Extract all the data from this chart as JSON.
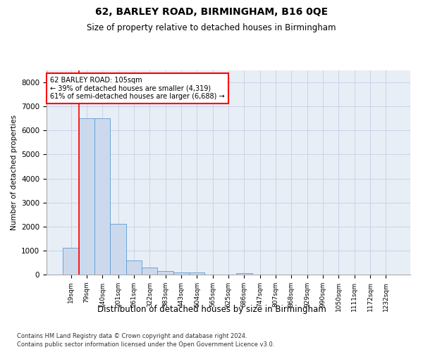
{
  "title1": "62, BARLEY ROAD, BIRMINGHAM, B16 0QE",
  "title2": "Size of property relative to detached houses in Birmingham",
  "xlabel": "Distribution of detached houses by size in Birmingham",
  "ylabel": "Number of detached properties",
  "categories": [
    "19sqm",
    "79sqm",
    "140sqm",
    "201sqm",
    "261sqm",
    "322sqm",
    "383sqm",
    "443sqm",
    "504sqm",
    "565sqm",
    "625sqm",
    "686sqm",
    "747sqm",
    "807sqm",
    "868sqm",
    "929sqm",
    "990sqm",
    "1050sqm",
    "1111sqm",
    "1172sqm",
    "1232sqm"
  ],
  "values": [
    1100,
    6500,
    6500,
    2100,
    600,
    300,
    150,
    100,
    100,
    0,
    0,
    60,
    0,
    0,
    0,
    0,
    0,
    0,
    0,
    0,
    0
  ],
  "bar_color": "#ccd9ec",
  "bar_edge_color": "#5b9bd5",
  "vline_x_idx": 1,
  "vline_color": "red",
  "annotation_text": "62 BARLEY ROAD: 105sqm\n← 39% of detached houses are smaller (4,319)\n61% of semi-detached houses are larger (6,688) →",
  "annotation_box_color": "white",
  "annotation_box_edge_color": "red",
  "ylim": [
    0,
    8500
  ],
  "yticks": [
    0,
    1000,
    2000,
    3000,
    4000,
    5000,
    6000,
    7000,
    8000
  ],
  "footnote1": "Contains HM Land Registry data © Crown copyright and database right 2024.",
  "footnote2": "Contains public sector information licensed under the Open Government Licence v3.0.",
  "grid_color": "#c8d4e6",
  "bg_color": "#e8eef6"
}
